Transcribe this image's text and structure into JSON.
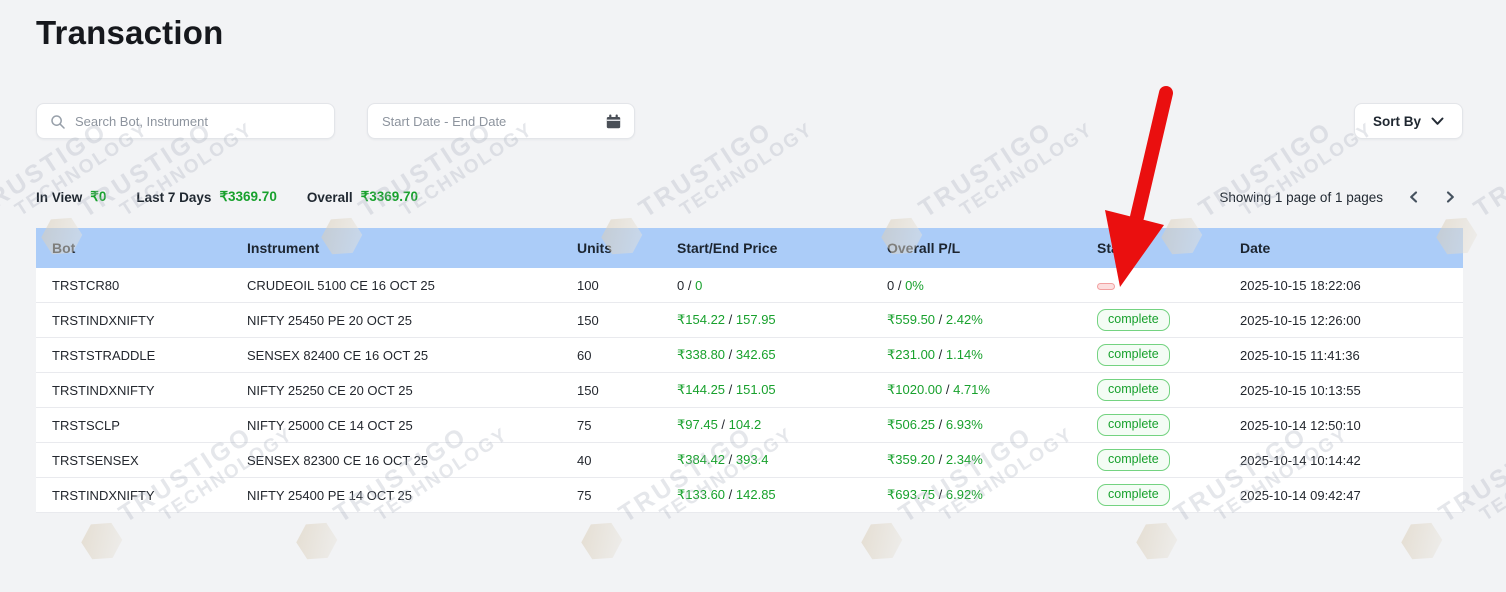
{
  "page": {
    "title": "Transaction"
  },
  "toolbar": {
    "search_placeholder": "Search Bot, Instrument",
    "date_placeholder": "Start Date - End Date",
    "sort_label": "Sort By",
    "icons": {
      "search": "search-icon",
      "calendar": "calendar-icon",
      "sort_chevron": "chevron-down-icon"
    }
  },
  "summary": {
    "items": [
      {
        "label": "In View",
        "value": "₹0"
      },
      {
        "label": "Last 7 Days",
        "value": "₹3369.70"
      },
      {
        "label": "Overall",
        "value": "₹3369.70"
      }
    ],
    "pagination": {
      "text": "Showing 1 page of 1 pages"
    }
  },
  "table": {
    "columns": [
      "Bot",
      "Instrument",
      "Units",
      "Start/End Price",
      "Overall P/L",
      "Status",
      "Date"
    ],
    "separator": " / ",
    "status_complete_label": "complete",
    "rows": [
      {
        "bot": "TRSTCR80",
        "instrument": "CRUDEOIL 5100 CE 16 OCT 25",
        "units": "100",
        "price_start": "0",
        "price_end": "0",
        "price_start_green": false,
        "pl_start": "0",
        "pl_end": "0%",
        "pl_start_green": false,
        "status": "dash",
        "date": "2025-10-15 18:22:06"
      },
      {
        "bot": "TRSTINDXNIFTY",
        "instrument": "NIFTY 25450 PE 20 OCT 25",
        "units": "150",
        "price_start": "₹154.22",
        "price_end": "157.95",
        "price_start_green": true,
        "pl_start": "₹559.50",
        "pl_end": "2.42%",
        "pl_start_green": true,
        "status": "complete",
        "date": "2025-10-15 12:26:00"
      },
      {
        "bot": "TRSTSTRADDLE",
        "instrument": "SENSEX 82400 CE 16 OCT 25",
        "units": "60",
        "price_start": "₹338.80",
        "price_end": "342.65",
        "price_start_green": true,
        "pl_start": "₹231.00",
        "pl_end": "1.14%",
        "pl_start_green": true,
        "status": "complete",
        "date": "2025-10-15 11:41:36"
      },
      {
        "bot": "TRSTINDXNIFTY",
        "instrument": "NIFTY 25250 CE 20 OCT 25",
        "units": "150",
        "price_start": "₹144.25",
        "price_end": "151.05",
        "price_start_green": true,
        "pl_start": "₹1020.00",
        "pl_end": "4.71%",
        "pl_start_green": true,
        "status": "complete",
        "date": "2025-10-15 10:13:55"
      },
      {
        "bot": "TRSTSCLP",
        "instrument": "NIFTY 25000 CE 14 OCT 25",
        "units": "75",
        "price_start": "₹97.45",
        "price_end": "104.2",
        "price_start_green": true,
        "pl_start": "₹506.25",
        "pl_end": "6.93%",
        "pl_start_green": true,
        "status": "complete",
        "date": "2025-10-14 12:50:10"
      },
      {
        "bot": "TRSTSENSEX",
        "instrument": "SENSEX 82300 CE 16 OCT 25",
        "units": "40",
        "price_start": "₹384.42",
        "price_end": "393.4",
        "price_start_green": true,
        "pl_start": "₹359.20",
        "pl_end": "2.34%",
        "pl_start_green": true,
        "status": "complete",
        "date": "2025-10-14 10:14:42"
      },
      {
        "bot": "TRSTINDXNIFTY",
        "instrument": "NIFTY 25400 PE 14 OCT 25",
        "units": "75",
        "price_start": "₹133.60",
        "price_end": "142.85",
        "price_start_green": true,
        "pl_start": "₹693.75",
        "pl_end": "6.92%",
        "pl_start_green": true,
        "status": "complete",
        "date": "2025-10-14 09:42:47"
      }
    ]
  },
  "colors": {
    "green": "#18a12d",
    "header_bg": "#abccf8",
    "arrow_red": "#ea0f0f",
    "page_bg": "#f2f3f5"
  },
  "watermark": {
    "line1": "TRUSTIGO",
    "line2": "TECHNOLOGY"
  }
}
